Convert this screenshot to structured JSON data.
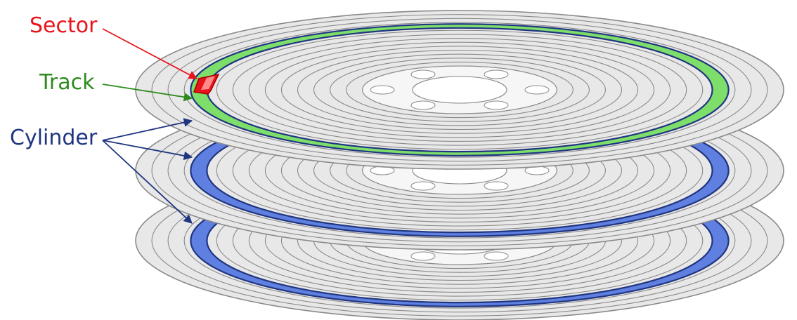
{
  "labels": {
    "sector": "Sector",
    "track": "Track",
    "cylinder": "Cylinder"
  },
  "colors": {
    "sector": "#e8141c",
    "track": "#2e8b1e",
    "cylinder": "#1f3580",
    "track_fill": "#7ddf6a",
    "cylinder_fill": "#5f80e0",
    "platter_fill": "#e8e8e8",
    "platter_stroke": "#8a8a8a",
    "hub_fill": "#f6f6f6"
  },
  "platters": {
    "count": 3,
    "track_rings": 14
  }
}
